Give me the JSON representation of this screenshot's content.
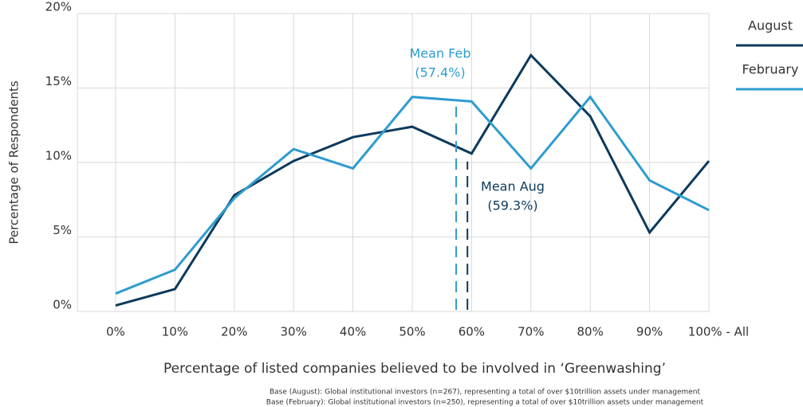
{
  "chart_data": {
    "type": "line",
    "categories": [
      "0%",
      "10%",
      "20%",
      "30%",
      "40%",
      "50%",
      "60%",
      "70%",
      "80%",
      "90%",
      "100% - All"
    ],
    "series": [
      {
        "name": "August",
        "color": "#0d3a5c",
        "values": [
          0.4,
          1.5,
          7.8,
          10.1,
          11.7,
          12.4,
          10.6,
          17.2,
          13.1,
          5.3,
          10.1
        ]
      },
      {
        "name": "February",
        "color": "#2e9ccf",
        "values": [
          1.2,
          2.8,
          7.6,
          10.9,
          9.6,
          14.4,
          14.1,
          9.6,
          14.4,
          8.8,
          6.8
        ]
      }
    ],
    "ylim": [
      0,
      20
    ],
    "yticks": [
      {
        "value": 0,
        "label": "0%"
      },
      {
        "value": 5,
        "label": "5%"
      },
      {
        "value": 10,
        "label": "10%"
      },
      {
        "value": 15,
        "label": "15%"
      },
      {
        "value": 20,
        "label": "20%"
      }
    ],
    "xlabel": "Percentage of listed companies believed to be involved in ‘Greenwashing’",
    "ylabel": "Percentage of Respondents",
    "grid": true,
    "legend": "right",
    "annotations": [
      {
        "text": "Mean Feb",
        "value": 57.4,
        "value_label": "(57.4%)",
        "series": 1
      },
      {
        "text": "Mean Aug",
        "value": 59.3,
        "value_label": "(59.3%)",
        "series": 0
      }
    ],
    "notes": [
      "Base (August): Global institutional investors (n=267), representing a total of over $10trillion assets under management",
      "Base (February): Global institutional investors (n=250), representing a total of over $10trillion assets under management"
    ]
  }
}
